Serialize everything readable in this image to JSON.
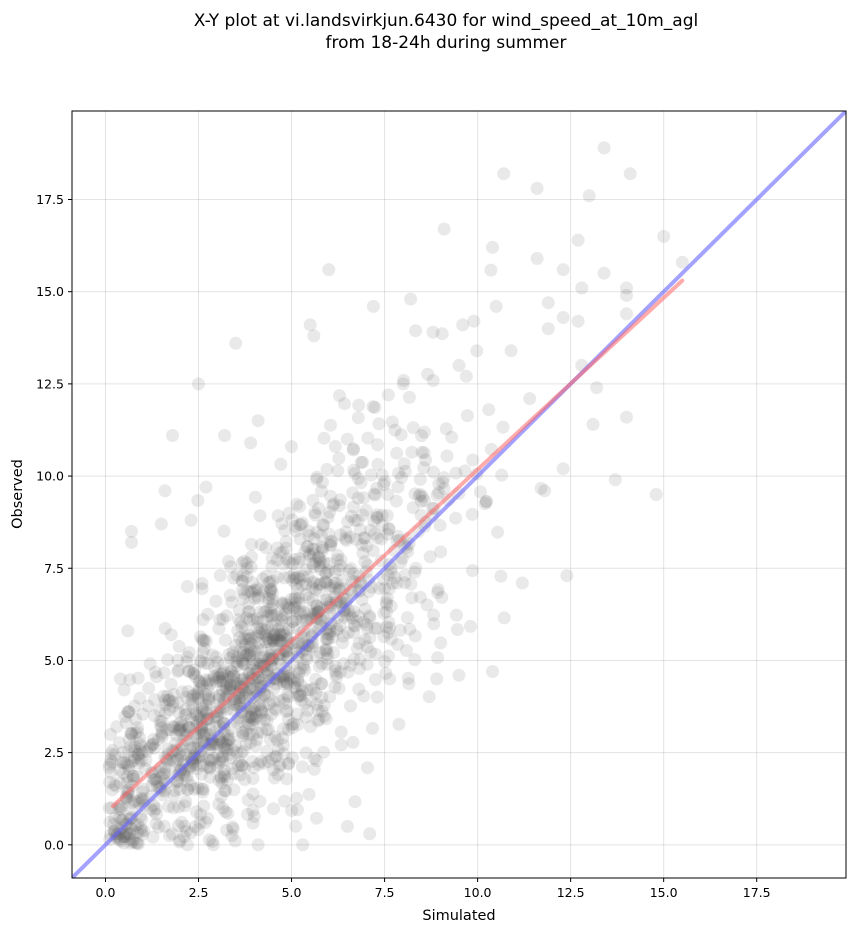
{
  "chart_data": {
    "type": "scatter",
    "title": [
      "X-Y plot at vi.landsvirkjun.6430 for wind_speed_at_10m_agl",
      "from 18-24h during summer"
    ],
    "xlabel": "Simulated",
    "ylabel": "Observed",
    "xlim": [
      -0.9,
      19.9
    ],
    "ylim": [
      -0.9,
      19.9
    ],
    "xticks": [
      0.0,
      2.5,
      5.0,
      7.5,
      10.0,
      12.5,
      15.0,
      17.5
    ],
    "yticks": [
      0.0,
      2.5,
      5.0,
      7.5,
      10.0,
      12.5,
      15.0,
      17.5
    ],
    "grid": true,
    "point_color": "#555555",
    "point_count": 1500,
    "distribution_note_omitted": true,
    "fit_line": {
      "color": "#ff6666",
      "x": [
        0.2,
        15.5
      ],
      "y": [
        1.05,
        15.3
      ]
    },
    "identity_line": {
      "color": "#6666ff",
      "x": [
        -0.9,
        19.9
      ],
      "y": [
        -0.9,
        19.9
      ]
    },
    "outliers": [
      [
        13.4,
        18.9
      ],
      [
        10.7,
        18.2
      ],
      [
        11.6,
        17.8
      ],
      [
        14.1,
        18.2
      ],
      [
        13.0,
        17.6
      ],
      [
        9.1,
        16.7
      ],
      [
        10.4,
        16.2
      ],
      [
        12.7,
        16.4
      ],
      [
        15.0,
        16.5
      ],
      [
        11.6,
        15.9
      ],
      [
        12.3,
        15.6
      ],
      [
        6.0,
        15.6
      ],
      [
        13.4,
        15.5
      ],
      [
        15.5,
        15.8
      ],
      [
        14.0,
        15.1
      ],
      [
        12.8,
        15.1
      ],
      [
        14.0,
        14.9
      ],
      [
        11.9,
        14.7
      ],
      [
        8.2,
        14.8
      ],
      [
        5.5,
        14.1
      ],
      [
        5.6,
        13.8
      ],
      [
        7.2,
        14.6
      ],
      [
        3.5,
        13.6
      ],
      [
        14.0,
        14.4
      ],
      [
        12.3,
        14.3
      ],
      [
        12.7,
        14.2
      ],
      [
        13.1,
        11.4
      ],
      [
        14.0,
        11.6
      ],
      [
        14.8,
        9.5
      ],
      [
        13.7,
        9.9
      ],
      [
        12.4,
        7.3
      ],
      [
        11.2,
        7.1
      ],
      [
        10.4,
        4.7
      ],
      [
        9.5,
        4.6
      ],
      [
        8.9,
        4.5
      ],
      [
        2.5,
        12.5
      ],
      [
        1.8,
        11.1
      ],
      [
        0.7,
        8.5
      ],
      [
        0.7,
        8.2
      ],
      [
        7.1,
        0.3
      ],
      [
        6.5,
        0.5
      ],
      [
        2.2,
        0.0
      ],
      [
        4.1,
        0.0
      ],
      [
        5.3,
        0.0
      ],
      [
        2.9,
        0.0
      ],
      [
        0.4,
        4.5
      ],
      [
        0.5,
        4.2
      ],
      [
        0.3,
        3.2
      ],
      [
        0.1,
        2.1
      ],
      [
        0.1,
        1.0
      ],
      [
        0.6,
        5.8
      ],
      [
        0.4,
        0.3
      ],
      [
        10.3,
        11.8
      ],
      [
        11.8,
        9.6
      ],
      [
        12.3,
        10.2
      ],
      [
        13.2,
        12.4
      ],
      [
        12.8,
        13.0
      ],
      [
        11.9,
        14.0
      ],
      [
        9.9,
        14.2
      ],
      [
        10.5,
        14.6
      ],
      [
        9.6,
        14.1
      ],
      [
        8.8,
        13.9
      ],
      [
        9.5,
        13.0
      ],
      [
        10.9,
        13.4
      ],
      [
        11.4,
        12.1
      ],
      [
        3.9,
        10.9
      ],
      [
        4.1,
        11.5
      ],
      [
        3.2,
        11.1
      ],
      [
        2.7,
        9.7
      ],
      [
        1.6,
        9.6
      ],
      [
        1.5,
        8.7
      ],
      [
        2.3,
        8.8
      ],
      [
        6.5,
        11.0
      ],
      [
        5.0,
        10.8
      ],
      [
        7.6,
        12.2
      ],
      [
        8.0,
        12.5
      ]
    ]
  }
}
